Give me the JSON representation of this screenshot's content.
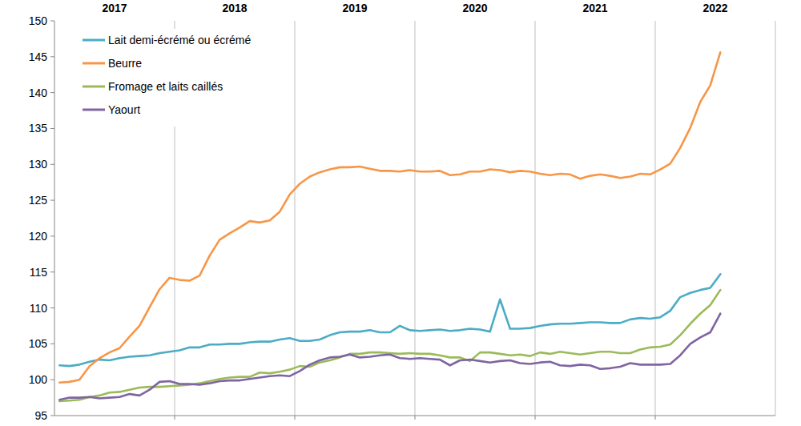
{
  "chart_data": {
    "type": "line",
    "x": [
      2017.042,
      2017.125,
      2017.208,
      2017.292,
      2017.375,
      2017.458,
      2017.542,
      2017.625,
      2017.708,
      2017.792,
      2017.875,
      2017.958,
      2018.042,
      2018.125,
      2018.208,
      2018.292,
      2018.375,
      2018.458,
      2018.542,
      2018.625,
      2018.708,
      2018.792,
      2018.875,
      2018.958,
      2019.042,
      2019.125,
      2019.208,
      2019.292,
      2019.375,
      2019.458,
      2019.542,
      2019.625,
      2019.708,
      2019.792,
      2019.875,
      2019.958,
      2020.042,
      2020.125,
      2020.208,
      2020.292,
      2020.375,
      2020.458,
      2020.542,
      2020.625,
      2020.708,
      2020.792,
      2020.875,
      2020.958,
      2021.042,
      2021.125,
      2021.208,
      2021.292,
      2021.375,
      2021.458,
      2021.542,
      2021.625,
      2021.708,
      2021.792,
      2021.875,
      2021.958,
      2022.042,
      2022.125,
      2022.208,
      2022.292,
      2022.375,
      2022.458,
      2022.542
    ],
    "series": [
      {
        "name": "Lait demi-écrémé ou écrémé",
        "color": "#4bacc6",
        "values": [
          102.0,
          101.9,
          102.1,
          102.5,
          102.8,
          102.7,
          103.0,
          103.2,
          103.3,
          103.4,
          103.7,
          103.9,
          104.1,
          104.5,
          104.5,
          104.9,
          104.9,
          105.0,
          105.0,
          105.2,
          105.3,
          105.3,
          105.6,
          105.8,
          105.4,
          105.4,
          105.6,
          106.2,
          106.6,
          106.7,
          106.7,
          106.9,
          106.6,
          106.6,
          107.5,
          106.9,
          106.8,
          106.9,
          107.0,
          106.8,
          106.9,
          107.1,
          107.0,
          106.7,
          111.2,
          107.1,
          107.1,
          107.2,
          107.5,
          107.7,
          107.8,
          107.8,
          107.9,
          108.0,
          108.0,
          107.9,
          107.9,
          108.4,
          108.6,
          108.5,
          108.7,
          109.6,
          111.5,
          112.1,
          112.5,
          112.8,
          114.7
        ]
      },
      {
        "name": "Beurre",
        "color": "#f79646",
        "values": [
          99.6,
          99.7,
          100.0,
          101.9,
          103.0,
          103.8,
          104.4,
          106.0,
          107.5,
          110.1,
          112.6,
          114.2,
          113.9,
          113.8,
          114.5,
          117.3,
          119.5,
          120.4,
          121.2,
          122.1,
          121.9,
          122.2,
          123.4,
          125.8,
          127.3,
          128.3,
          128.9,
          129.3,
          129.6,
          129.6,
          129.7,
          129.4,
          129.1,
          129.1,
          129.0,
          129.2,
          129.0,
          129.0,
          129.1,
          128.5,
          128.6,
          129.0,
          129.0,
          129.3,
          129.2,
          128.9,
          129.1,
          129.0,
          128.7,
          128.5,
          128.7,
          128.6,
          128.0,
          128.4,
          128.6,
          128.4,
          128.1,
          128.3,
          128.7,
          128.6,
          129.3,
          130.1,
          132.3,
          135.1,
          138.7,
          141.0,
          145.6
        ]
      },
      {
        "name": "Fromage et laits caillés",
        "color": "#9bbb59",
        "values": [
          97.0,
          97.1,
          97.2,
          97.6,
          97.8,
          98.2,
          98.3,
          98.6,
          98.9,
          99.0,
          99.0,
          99.1,
          99.2,
          99.3,
          99.5,
          99.8,
          100.1,
          100.3,
          100.4,
          100.4,
          101.0,
          100.9,
          101.1,
          101.4,
          101.9,
          101.8,
          102.4,
          102.7,
          103.1,
          103.6,
          103.6,
          103.8,
          103.8,
          103.7,
          103.6,
          103.7,
          103.6,
          103.6,
          103.4,
          103.1,
          103.1,
          102.6,
          103.8,
          103.8,
          103.6,
          103.4,
          103.5,
          103.3,
          103.8,
          103.6,
          103.9,
          103.7,
          103.5,
          103.7,
          103.9,
          103.9,
          103.7,
          103.7,
          104.2,
          104.5,
          104.6,
          104.9,
          106.2,
          107.8,
          109.2,
          110.4,
          112.5
        ]
      },
      {
        "name": "Yaourt",
        "color": "#8064a2",
        "values": [
          97.2,
          97.5,
          97.5,
          97.6,
          97.4,
          97.5,
          97.6,
          98.0,
          97.8,
          98.6,
          99.7,
          99.8,
          99.4,
          99.4,
          99.3,
          99.5,
          99.8,
          99.9,
          99.9,
          100.1,
          100.3,
          100.5,
          100.6,
          100.5,
          101.2,
          102.1,
          102.7,
          103.1,
          103.2,
          103.5,
          103.1,
          103.2,
          103.4,
          103.5,
          103.0,
          102.9,
          103.0,
          102.9,
          102.8,
          102.0,
          102.7,
          102.8,
          102.6,
          102.4,
          102.6,
          102.7,
          102.3,
          102.2,
          102.4,
          102.5,
          102.0,
          101.9,
          102.1,
          102.0,
          101.5,
          101.6,
          101.8,
          102.3,
          102.1,
          102.1,
          102.1,
          102.2,
          103.4,
          105.0,
          105.9,
          106.6,
          109.2
        ]
      }
    ],
    "xlim": [
      2017,
      2023
    ],
    "xticks": [
      {
        "value": 2017.5,
        "label": "2017"
      },
      {
        "value": 2018.5,
        "label": "2018"
      },
      {
        "value": 2019.5,
        "label": "2019"
      },
      {
        "value": 2020.5,
        "label": "2020"
      },
      {
        "value": 2021.5,
        "label": "2021"
      },
      {
        "value": 2022.5,
        "label": "2022"
      }
    ],
    "ylim": [
      95,
      150
    ],
    "yticks": [
      95,
      100,
      105,
      110,
      115,
      120,
      125,
      130,
      135,
      140,
      145,
      150
    ],
    "grid": true,
    "legend": "top-left"
  }
}
